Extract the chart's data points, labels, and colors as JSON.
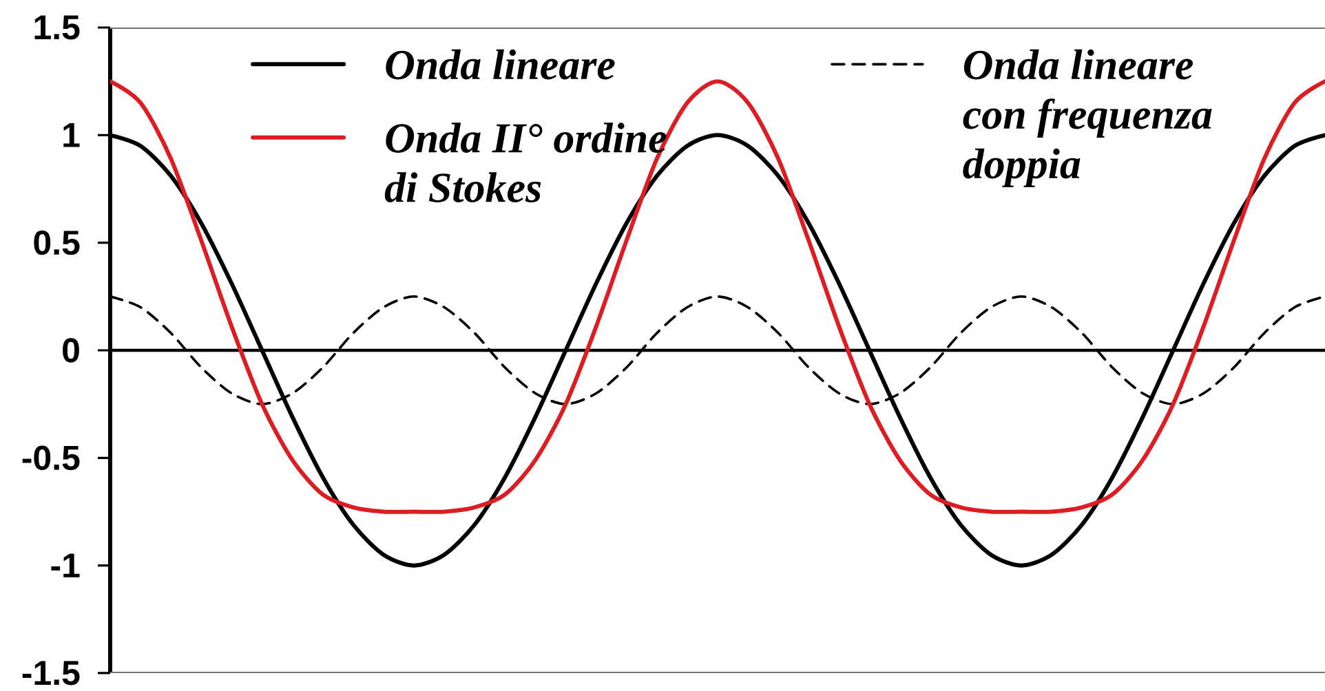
{
  "chart_data": {
    "type": "line",
    "categories": [
      null,
      null,
      null,
      null,
      null,
      null,
      null,
      null,
      null,
      null,
      null,
      null,
      null,
      null,
      null,
      null,
      null,
      null,
      null,
      null,
      null,
      null,
      null,
      null,
      null,
      null,
      null,
      null,
      null,
      null,
      null,
      null,
      null,
      null,
      null,
      null,
      null,
      null,
      null,
      null,
      null
    ],
    "ylim": [
      -1.5,
      1.5
    ],
    "yticks": [
      -1.5,
      -1,
      -0.5,
      0,
      0.5,
      1,
      1.5
    ],
    "tick_labels": "y",
    "legend": "top",
    "series": [
      {
        "name": "Onda lineare",
        "color": "#000000",
        "line_style": "solid",
        "values": [
          1,
          0.95,
          0.81,
          0.59,
          0.31,
          0,
          -0.31,
          -0.59,
          -0.81,
          -0.95,
          -1,
          -0.95,
          -0.81,
          -0.59,
          -0.31,
          0,
          0.31,
          0.59,
          0.81,
          0.95,
          1,
          0.95,
          0.81,
          0.59,
          0.31,
          0,
          -0.31,
          -0.59,
          -0.81,
          -0.95,
          -1,
          -0.95,
          -0.81,
          -0.59,
          -0.31,
          0,
          0.31,
          0.59,
          0.81,
          0.95,
          1
        ]
      },
      {
        "name": "Onda lineare con frequenza doppia",
        "color": "#000000",
        "line_style": "dashed",
        "values": [
          0.25,
          0.2,
          0.08,
          -0.08,
          -0.2,
          -0.25,
          -0.2,
          -0.08,
          0.08,
          0.2,
          0.25,
          0.2,
          0.08,
          -0.08,
          -0.2,
          -0.25,
          -0.2,
          -0.08,
          0.08,
          0.2,
          0.25,
          0.2,
          0.08,
          -0.08,
          -0.2,
          -0.25,
          -0.2,
          -0.08,
          0.08,
          0.2,
          0.25,
          0.2,
          0.08,
          -0.08,
          -0.2,
          -0.25,
          -0.2,
          -0.08,
          0.08,
          0.2,
          0.25
        ]
      },
      {
        "name": "Onda II° ordine di Stokes",
        "color": "#dc1e24",
        "line_style": "solid",
        "values": [
          1.25,
          1.15,
          0.89,
          0.51,
          0.11,
          -0.25,
          -0.51,
          -0.67,
          -0.73,
          -0.75,
          -0.75,
          -0.75,
          -0.73,
          -0.67,
          -0.51,
          -0.25,
          0.11,
          0.51,
          0.89,
          1.15,
          1.25,
          1.15,
          0.89,
          0.51,
          0.11,
          -0.25,
          -0.51,
          -0.67,
          -0.73,
          -0.75,
          -0.75,
          -0.75,
          -0.73,
          -0.67,
          -0.51,
          -0.25,
          0.11,
          0.51,
          0.89,
          1.15,
          1.25
        ]
      }
    ]
  }
}
